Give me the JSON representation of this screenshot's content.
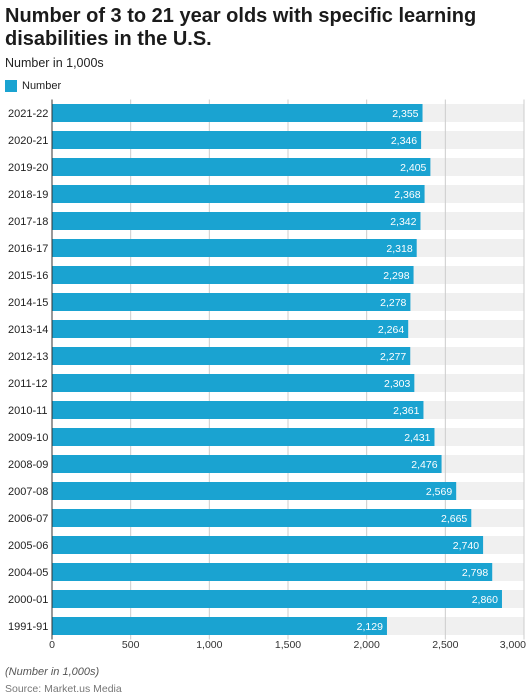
{
  "title": "Number of 3 to 21 year olds with specific learning disabilities in the U.S.",
  "subtitle": "Number in 1,000s",
  "legend": {
    "label": "Number",
    "color": "#1aa3d1"
  },
  "footnote": "(Number in 1,000s)",
  "source": "Source: Market.us Media",
  "colors": {
    "bar": "#1aa3d1",
    "track": "#f0f0f0",
    "grid": "#cccccc",
    "bar_label": "#ffffff"
  },
  "chart_data": {
    "type": "bar",
    "orientation": "horizontal",
    "categories": [
      "2021-22",
      "2020-21",
      "2019-20",
      "2018-19",
      "2017-18",
      "2016-17",
      "2015-16",
      "2014-15",
      "2013-14",
      "2012-13",
      "2011-12",
      "2010-11",
      "2009-10",
      "2008-09",
      "2007-08",
      "2006-07",
      "2005-06",
      "2004-05",
      "2000-01",
      "1991-91"
    ],
    "series": [
      {
        "name": "Number",
        "values": [
          2355,
          2346,
          2405,
          2368,
          2342,
          2318,
          2298,
          2278,
          2264,
          2277,
          2303,
          2361,
          2431,
          2476,
          2569,
          2665,
          2740,
          2798,
          2860,
          2129
        ]
      }
    ],
    "value_labels": [
      "2,355",
      "2,346",
      "2,405",
      "2,368",
      "2,342",
      "2,318",
      "2,298",
      "2,278",
      "2,264",
      "2,277",
      "2,303",
      "2,361",
      "2,431",
      "2,476",
      "2,569",
      "2,665",
      "2,740",
      "2,798",
      "2,860",
      "2,129"
    ],
    "xlim": [
      0,
      3000
    ],
    "x_ticks": [
      0,
      500,
      1000,
      1500,
      2000,
      2500,
      3000
    ],
    "x_tick_labels": [
      "0",
      "500",
      "1,000",
      "1,500",
      "2,000",
      "2,500",
      "3,000"
    ],
    "grid": true,
    "legend_position": "top-left"
  }
}
